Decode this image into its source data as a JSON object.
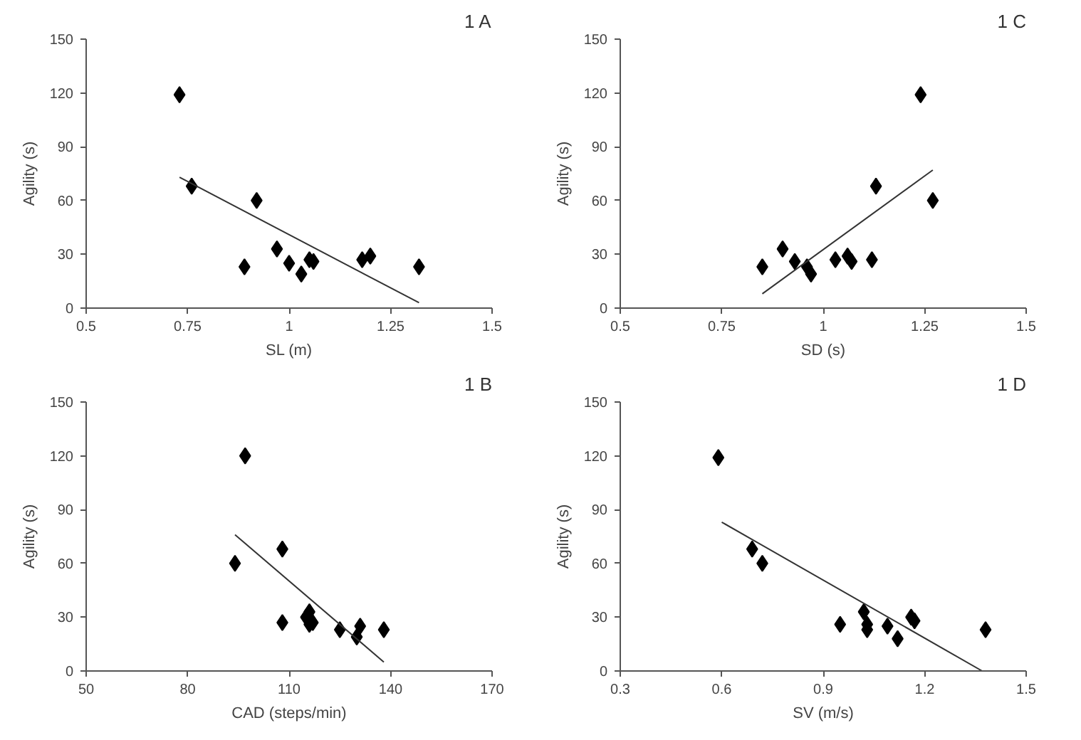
{
  "chart_data": [
    {
      "type": "scatter",
      "title": "1 A",
      "xlabel": "SL (m)",
      "ylabel": "Agility (s)",
      "xlim": [
        0.5,
        1.5
      ],
      "ylim": [
        0,
        150
      ],
      "xticks": [
        0.5,
        0.75,
        1,
        1.25,
        1.5
      ],
      "yticks": [
        0,
        30,
        60,
        90,
        120,
        150
      ],
      "series": [
        {
          "color": "#000000",
          "marker": "diamond",
          "x": [
            0.73,
            0.76,
            0.89,
            0.92,
            0.97,
            1.0,
            1.03,
            1.05,
            1.06,
            1.18,
            1.2,
            1.32
          ],
          "values": [
            119,
            68,
            23,
            60,
            33,
            25,
            19,
            27,
            26,
            27,
            29,
            23
          ]
        },
        {
          "type": "line",
          "marker": "none",
          "color": "#333333",
          "x": [
            0.73,
            1.32
          ],
          "values": [
            73,
            3
          ]
        }
      ]
    },
    {
      "type": "scatter",
      "title": "1 C",
      "xlabel": "SD (s)",
      "ylabel": "Agility (s)",
      "xlim": [
        0.5,
        1.5
      ],
      "ylim": [
        0,
        150
      ],
      "xticks": [
        0.5,
        0.75,
        1,
        1.25,
        1.5
      ],
      "yticks": [
        0,
        30,
        60,
        90,
        120,
        150
      ],
      "series": [
        {
          "color": "#000000",
          "marker": "diamond",
          "x": [
            0.85,
            0.9,
            0.93,
            0.96,
            0.97,
            1.03,
            1.06,
            1.07,
            1.12,
            1.13,
            1.24,
            1.27
          ],
          "values": [
            23,
            33,
            26,
            23,
            19,
            27,
            29,
            26,
            27,
            68,
            119,
            60
          ]
        },
        {
          "type": "line",
          "marker": "none",
          "color": "#333333",
          "x": [
            0.85,
            1.27
          ],
          "values": [
            8,
            77
          ]
        }
      ]
    },
    {
      "type": "scatter",
      "title": "1 B",
      "xlabel": "CAD (steps/min)",
      "ylabel": "Agility (s)",
      "xlim": [
        50,
        170
      ],
      "ylim": [
        0,
        150
      ],
      "xticks": [
        50,
        80,
        110,
        140,
        170
      ],
      "yticks": [
        0,
        30,
        60,
        90,
        120,
        150
      ],
      "series": [
        {
          "color": "#000000",
          "marker": "diamond",
          "x": [
            94,
            97,
            108,
            108,
            115,
            116,
            116,
            117,
            125,
            130,
            131,
            138
          ],
          "values": [
            60,
            120,
            27,
            68,
            30,
            26,
            33,
            27,
            23,
            19,
            25,
            23
          ]
        },
        {
          "type": "line",
          "marker": "none",
          "color": "#333333",
          "x": [
            94,
            138
          ],
          "values": [
            76,
            5
          ]
        }
      ]
    },
    {
      "type": "scatter",
      "title": "1 D",
      "xlabel": "SV (m/s)",
      "ylabel": "Agility (s)",
      "xlim": [
        0.3,
        1.5
      ],
      "ylim": [
        0,
        150
      ],
      "xticks": [
        0.3,
        0.6,
        0.9,
        1.2,
        1.5
      ],
      "yticks": [
        0,
        30,
        60,
        90,
        120,
        150
      ],
      "series": [
        {
          "color": "#000000",
          "marker": "diamond",
          "x": [
            0.59,
            0.69,
            0.72,
            0.95,
            1.02,
            1.03,
            1.03,
            1.09,
            1.12,
            1.16,
            1.17,
            1.38
          ],
          "values": [
            119,
            68,
            60,
            26,
            33,
            26,
            23,
            25,
            18,
            30,
            28,
            23
          ]
        },
        {
          "type": "line",
          "marker": "none",
          "color": "#333333",
          "x": [
            0.6,
            1.37
          ],
          "values": [
            83,
            0
          ]
        }
      ]
    }
  ]
}
